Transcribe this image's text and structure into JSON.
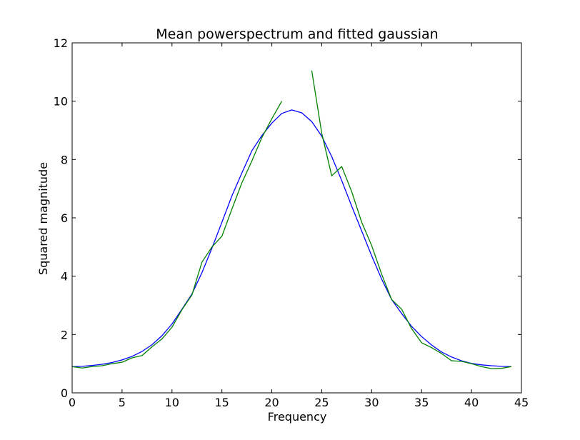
{
  "chart_data": {
    "type": "line",
    "title": "Mean powerspectrum and fitted gaussian",
    "xlabel": "Frequency",
    "ylabel": "Squared magnitude",
    "xlim": [
      0,
      45
    ],
    "ylim": [
      0,
      12
    ],
    "xticks": [
      0,
      5,
      10,
      15,
      20,
      25,
      30,
      35,
      40,
      45
    ],
    "yticks": [
      0,
      2,
      4,
      6,
      8,
      10,
      12
    ],
    "grid": false,
    "legend": false,
    "series": [
      {
        "color": "#0000ff",
        "x": [
          0,
          1,
          2,
          3,
          4,
          5,
          6,
          7,
          8,
          9,
          10,
          11,
          12,
          13,
          14,
          15,
          16,
          17,
          18,
          19,
          20,
          21,
          22,
          23,
          24,
          25,
          26,
          27,
          28,
          29,
          30,
          31,
          32,
          33,
          34,
          35,
          36,
          37,
          38,
          39,
          40,
          41,
          42,
          43,
          44
        ],
        "y": [
          0.9,
          0.91,
          0.94,
          0.98,
          1.04,
          1.13,
          1.25,
          1.42,
          1.65,
          1.96,
          2.36,
          2.87,
          3.39,
          4.12,
          4.96,
          5.85,
          6.75,
          7.54,
          8.3,
          8.82,
          9.25,
          9.58,
          9.7,
          9.6,
          9.3,
          8.8,
          8.1,
          7.28,
          6.4,
          5.55,
          4.7,
          3.9,
          3.2,
          2.72,
          2.28,
          1.93,
          1.64,
          1.4,
          1.23,
          1.1,
          1.01,
          0.96,
          0.93,
          0.91,
          0.9
        ]
      },
      {
        "color": "#008000",
        "segments": [
          {
            "x": [
              0,
              1,
              2,
              3,
              4,
              5,
              6,
              7,
              8,
              9,
              10,
              11,
              12,
              13,
              14,
              15,
              16,
              17,
              18,
              19,
              20,
              21
            ],
            "y": [
              0.9,
              0.85,
              0.9,
              0.93,
              1.0,
              1.05,
              1.2,
              1.28,
              1.58,
              1.85,
              2.25,
              2.85,
              3.36,
              4.48,
              5.0,
              5.37,
              6.3,
              7.2,
              7.95,
              8.75,
              9.4,
              10.0
            ]
          },
          {
            "x": [
              24,
              25,
              26,
              27,
              28,
              29,
              30,
              31,
              32,
              33,
              34,
              35,
              36,
              37,
              38,
              39,
              40,
              41,
              42,
              43,
              44
            ],
            "y": [
              11.05,
              8.9,
              7.44,
              7.76,
              6.9,
              5.85,
              5.05,
              4.07,
              3.2,
              2.87,
              2.2,
              1.72,
              1.55,
              1.35,
              1.1,
              1.08,
              1.0,
              0.9,
              0.83,
              0.84,
              0.9
            ]
          }
        ]
      }
    ]
  }
}
